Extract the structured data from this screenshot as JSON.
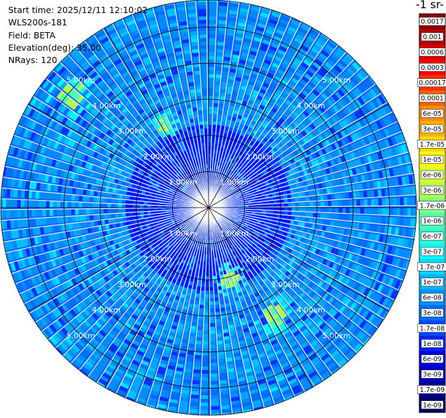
{
  "info": {
    "start_time": "Start time: 2025/12/11 12:10:02",
    "instrument": "WLS200s-181",
    "field": "Field: BETA",
    "elevation": "Elevation(deg): 35.00",
    "nrays": "NRays: 120"
  },
  "colorbar": {
    "title_fragment": "-1 sr-",
    "labels": [
      "0.0017",
      "0.001",
      "0.0006",
      "0.0003",
      "0.00017",
      "0.0001",
      "6e-05",
      "3e-05",
      "1.7e-05",
      "1e-05",
      "6e-06",
      "3e-06",
      "1.7e-06",
      "1e-06",
      "6e-07",
      "3e-07",
      "1.7e-07",
      "1e-07",
      "6e-08",
      "3e-08",
      "1.7e-08",
      "1e-08",
      "6e-09",
      "3e-09",
      "1.7e-09",
      "1e-09"
    ],
    "colors": [
      "#8b0000",
      "#b00000",
      "#d60000",
      "#ff0000",
      "#ff3000",
      "#ff6000",
      "#ff8c00",
      "#ffb000",
      "#ffd800",
      "#ffff00",
      "#d8ff28",
      "#b0ff50",
      "#80ff80",
      "#50ffb0",
      "#28ffd8",
      "#00ffff",
      "#00d8ff",
      "#00b4ff",
      "#0090ff",
      "#006cff",
      "#0048ff",
      "#0020ff",
      "#0000e0",
      "#0000b8",
      "#000090",
      "#000068"
    ]
  },
  "chart_data": {
    "type": "heatmap",
    "projection": "polar (PPI scan)",
    "field": "BETA",
    "elevation_deg": 35.0,
    "n_rays": 120,
    "range_rings_km": [
      1,
      2,
      3,
      4,
      5
    ],
    "ring_labels": [
      "1.00km",
      "2.00km",
      "3.00km",
      "4.00km",
      "5.00km"
    ],
    "max_range_km": 5.75,
    "color_scale": "log",
    "value_range": [
      1e-09,
      0.0017
    ],
    "dominant_range": [
      1e-08,
      1e-07
    ],
    "notable_features": [
      "higher values (~1e-05) near 4.5 km to the north-west",
      "higher values (~1e-05) near 2.8 km to the south-east"
    ]
  }
}
